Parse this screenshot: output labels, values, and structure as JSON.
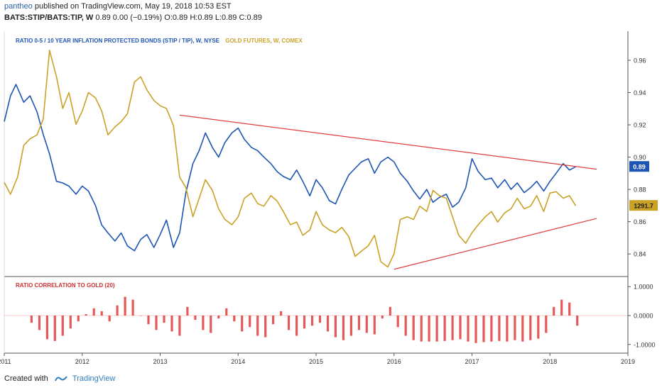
{
  "header": {
    "author": "pantheo",
    "published_text": "published on TradingView.com, May 19, 2018 10:53 EST",
    "symbol_line": "BATS:STIP/BATS:TIP, W",
    "quote_line": "0.89 0.00 (−0.19%) O:0.89 H:0.89 L:0.89 C:0.89"
  },
  "legend": {
    "ratio_label": "RATIO 0-5 / 10 YEAR INFLATION PROTECTED BONDS (STIP / TIP), W, NYSE",
    "gold_label": "GOLD FUTURES, W, COMEX"
  },
  "indicator": {
    "title": "RATIO CORRELATION TO GOLD (20)"
  },
  "price_tags": {
    "ratio_last": "0.89",
    "gold_last": "1291.7"
  },
  "footer": {
    "created_with": "Created with",
    "brand": "TradingView"
  },
  "colors": {
    "ratio": "#1e55b3",
    "gold": "#c9a227",
    "trendline": "#e03c3c",
    "correlation": "#e03c3c",
    "axis_text": "#333333"
  },
  "chart_data": [
    {
      "type": "line",
      "title": "",
      "x_axis_ticks": [
        "2011",
        "2012",
        "2013",
        "2014",
        "2015",
        "2016",
        "2017",
        "2018",
        "2019"
      ],
      "y_axis_ticks": [
        0.84,
        0.86,
        0.88,
        0.9,
        0.92,
        0.94,
        0.96
      ],
      "ylim": [
        0.826,
        0.978
      ],
      "xlim": [
        2011.0,
        2019.0
      ],
      "series": [
        {
          "name": "RATIO 0-5 / 10 YEAR INFLATION PROTECTED BONDS (STIP / TIP), W, NYSE",
          "axis": "left-scale",
          "x": [
            2011.0,
            2011.08,
            2011.15,
            2011.25,
            2011.33,
            2011.42,
            2011.5,
            2011.58,
            2011.67,
            2011.75,
            2011.83,
            2011.92,
            2012.0,
            2012.08,
            2012.17,
            2012.25,
            2012.33,
            2012.42,
            2012.5,
            2012.58,
            2012.67,
            2012.75,
            2012.83,
            2012.92,
            2013.0,
            2013.08,
            2013.17,
            2013.25,
            2013.33,
            2013.42,
            2013.5,
            2013.58,
            2013.67,
            2013.75,
            2013.83,
            2013.92,
            2014.0,
            2014.08,
            2014.17,
            2014.25,
            2014.33,
            2014.42,
            2014.5,
            2014.58,
            2014.67,
            2014.75,
            2014.83,
            2014.92,
            2015.0,
            2015.08,
            2015.17,
            2015.25,
            2015.33,
            2015.42,
            2015.5,
            2015.58,
            2015.67,
            2015.75,
            2015.83,
            2015.92,
            2016.0,
            2016.08,
            2016.17,
            2016.25,
            2016.33,
            2016.42,
            2016.5,
            2016.58,
            2016.67,
            2016.75,
            2016.83,
            2016.92,
            2017.0,
            2017.08,
            2017.17,
            2017.25,
            2017.33,
            2017.42,
            2017.5,
            2017.58,
            2017.67,
            2017.75,
            2017.83,
            2017.92,
            2018.0,
            2018.08,
            2018.17,
            2018.25,
            2018.33
          ],
          "values": [
            0.922,
            0.938,
            0.945,
            0.934,
            0.938,
            0.928,
            0.914,
            0.902,
            0.885,
            0.884,
            0.882,
            0.877,
            0.882,
            0.879,
            0.87,
            0.858,
            0.853,
            0.848,
            0.853,
            0.845,
            0.842,
            0.849,
            0.852,
            0.844,
            0.852,
            0.861,
            0.844,
            0.853,
            0.878,
            0.896,
            0.904,
            0.915,
            0.906,
            0.9,
            0.909,
            0.915,
            0.918,
            0.911,
            0.906,
            0.904,
            0.9,
            0.896,
            0.891,
            0.888,
            0.886,
            0.892,
            0.885,
            0.876,
            0.886,
            0.881,
            0.873,
            0.871,
            0.88,
            0.889,
            0.893,
            0.897,
            0.899,
            0.89,
            0.897,
            0.9,
            0.897,
            0.89,
            0.885,
            0.879,
            0.874,
            0.88,
            0.872,
            0.875,
            0.877,
            0.869,
            0.872,
            0.881,
            0.899,
            0.891,
            0.886,
            0.887,
            0.881,
            0.886,
            0.88,
            0.884,
            0.878,
            0.881,
            0.885,
            0.879,
            0.885,
            0.89,
            0.896,
            0.892,
            0.894
          ]
        },
        {
          "name": "GOLD FUTURES, W, COMEX",
          "axis": "overlay",
          "x": [
            2011.0,
            2011.08,
            2011.17,
            2011.25,
            2011.33,
            2011.42,
            2011.5,
            2011.58,
            2011.67,
            2011.75,
            2011.83,
            2011.92,
            2012.0,
            2012.08,
            2012.17,
            2012.25,
            2012.33,
            2012.42,
            2012.5,
            2012.58,
            2012.67,
            2012.75,
            2012.83,
            2012.92,
            2013.0,
            2013.08,
            2013.17,
            2013.25,
            2013.33,
            2013.42,
            2013.5,
            2013.58,
            2013.67,
            2013.75,
            2013.83,
            2013.92,
            2014.0,
            2014.08,
            2014.17,
            2014.25,
            2014.33,
            2014.42,
            2014.5,
            2014.58,
            2014.67,
            2014.75,
            2014.83,
            2014.92,
            2015.0,
            2015.08,
            2015.17,
            2015.25,
            2015.33,
            2015.42,
            2015.5,
            2015.58,
            2015.67,
            2015.75,
            2015.83,
            2015.92,
            2016.0,
            2016.08,
            2016.17,
            2016.25,
            2016.33,
            2016.42,
            2016.5,
            2016.58,
            2016.67,
            2016.75,
            2016.83,
            2016.92,
            2017.0,
            2017.08,
            2017.17,
            2017.25,
            2017.33,
            2017.42,
            2017.5,
            2017.58,
            2017.67,
            2017.75,
            2017.83,
            2017.92,
            2018.0,
            2018.08,
            2018.17,
            2018.25,
            2018.33
          ],
          "values": [
            1380,
            1335,
            1400,
            1520,
            1545,
            1560,
            1620,
            1880,
            1780,
            1660,
            1720,
            1600,
            1650,
            1720,
            1700,
            1650,
            1560,
            1590,
            1610,
            1640,
            1760,
            1780,
            1730,
            1690,
            1670,
            1660,
            1595,
            1400,
            1360,
            1250,
            1320,
            1390,
            1350,
            1280,
            1240,
            1220,
            1250,
            1320,
            1340,
            1300,
            1290,
            1330,
            1310,
            1270,
            1220,
            1230,
            1180,
            1200,
            1270,
            1220,
            1200,
            1190,
            1210,
            1175,
            1100,
            1120,
            1140,
            1180,
            1080,
            1060,
            1110,
            1240,
            1250,
            1240,
            1290,
            1270,
            1350,
            1330,
            1320,
            1250,
            1180,
            1150,
            1190,
            1220,
            1250,
            1270,
            1230,
            1265,
            1280,
            1320,
            1280,
            1290,
            1330,
            1270,
            1340,
            1345,
            1320,
            1330,
            1291.7
          ]
        }
      ],
      "trendlines": [
        {
          "name": "upper",
          "x": [
            2013.25,
            2018.6
          ],
          "y": [
            0.926,
            0.8925
          ]
        },
        {
          "name": "lower",
          "x": [
            2016.0,
            2018.6
          ],
          "y": [
            0.8305,
            0.862
          ]
        }
      ],
      "legend_position": "top-left",
      "grid": false
    },
    {
      "type": "bar",
      "title": "RATIO CORRELATION TO GOLD (20)",
      "y_axis_ticks": [
        1.0,
        0.0,
        -1.0
      ],
      "y_axis_labels": [
        "1.0000",
        "0.0000",
        "-1.0000"
      ],
      "ylim": [
        -1.3,
        1.3
      ],
      "xlim": [
        2011.0,
        2019.0
      ],
      "x": [
        2011.35,
        2011.45,
        2011.55,
        2011.65,
        2011.75,
        2011.85,
        2011.95,
        2012.05,
        2012.15,
        2012.25,
        2012.35,
        2012.45,
        2012.55,
        2012.65,
        2012.75,
        2012.85,
        2012.95,
        2013.05,
        2013.15,
        2013.25,
        2013.35,
        2013.45,
        2013.55,
        2013.65,
        2013.75,
        2013.85,
        2013.95,
        2014.05,
        2014.15,
        2014.25,
        2014.35,
        2014.45,
        2014.55,
        2014.65,
        2014.75,
        2014.85,
        2014.95,
        2015.05,
        2015.15,
        2015.25,
        2015.35,
        2015.45,
        2015.55,
        2015.65,
        2015.75,
        2015.85,
        2015.95,
        2016.05,
        2016.15,
        2016.25,
        2016.35,
        2016.45,
        2016.55,
        2016.65,
        2016.75,
        2016.85,
        2016.95,
        2017.05,
        2017.15,
        2017.25,
        2017.35,
        2017.45,
        2017.55,
        2017.65,
        2017.75,
        2017.85,
        2017.95,
        2018.05,
        2018.15,
        2018.25,
        2018.35
      ],
      "values": [
        -0.25,
        -0.5,
        -0.82,
        -0.88,
        -0.7,
        -0.45,
        -0.2,
        0.05,
        0.25,
        0.15,
        -0.2,
        0.35,
        0.65,
        0.55,
        0.0,
        -0.3,
        -0.5,
        -0.25,
        -0.55,
        -0.7,
        0.3,
        -0.15,
        -0.5,
        -0.6,
        -0.1,
        0.25,
        -0.2,
        -0.55,
        -0.4,
        -0.7,
        -0.75,
        -0.3,
        0.15,
        -0.5,
        -0.7,
        -0.45,
        -0.35,
        -0.25,
        -0.55,
        -0.75,
        -0.85,
        -0.7,
        -0.5,
        -0.6,
        -0.65,
        -0.1,
        0.3,
        -0.4,
        -0.7,
        -0.85,
        -0.9,
        -0.9,
        -0.9,
        -0.88,
        -0.85,
        -0.82,
        -0.9,
        -0.95,
        -0.92,
        -0.9,
        -0.88,
        -0.9,
        -0.85,
        -0.9,
        -0.85,
        -0.8,
        -0.6,
        0.3,
        0.55,
        0.45,
        -0.35
      ]
    }
  ]
}
